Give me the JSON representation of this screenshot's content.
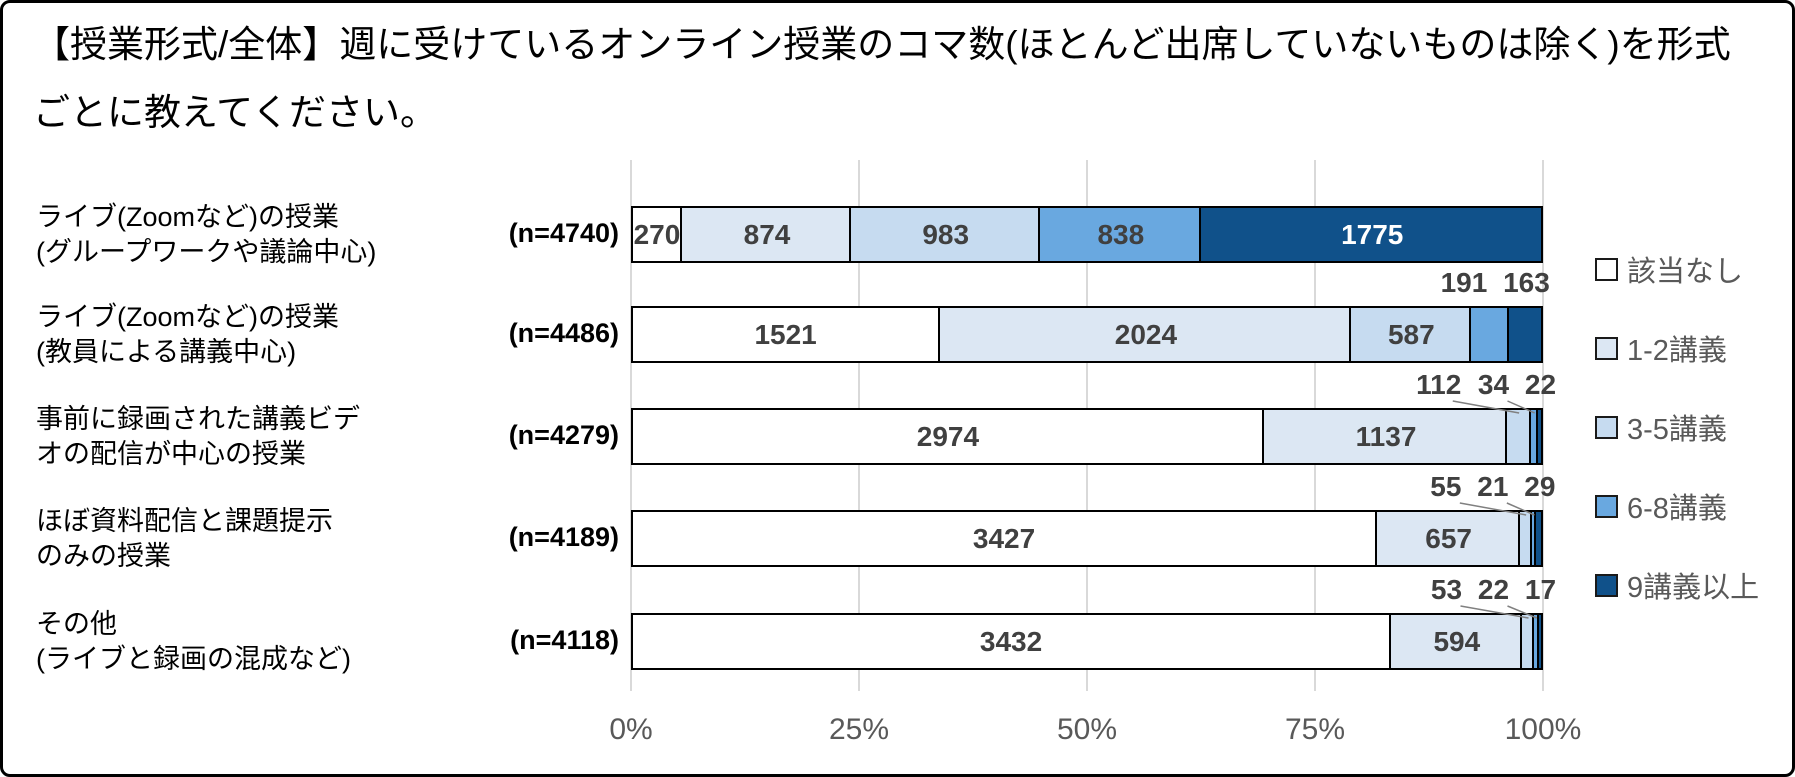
{
  "title": "【授業形式/全体】週に受けているオンライン授業のコマ数(ほとんど出席していないものは除く)を形式ごとに教えてください。",
  "chart_data": {
    "type": "bar",
    "subtype": "stacked-horizontal-100pct",
    "xlabel": "",
    "ylabel": "",
    "x_axis": {
      "ticks": [
        "0%",
        "25%",
        "50%",
        "75%",
        "100%"
      ],
      "range_pct": [
        0,
        100
      ],
      "grid": true
    },
    "legend": {
      "position": "right",
      "entries": [
        {
          "label": "該当なし",
          "color": "#FFFFFF"
        },
        {
          "label": "1-2講義",
          "color": "#DCE7F3"
        },
        {
          "label": "3-5講義",
          "color": "#C6DBF0"
        },
        {
          "label": "6-8講義",
          "color": "#69A8E0"
        },
        {
          "label": "9講義以上",
          "color": "#10518A"
        }
      ]
    },
    "rows": [
      {
        "label_lines": [
          "ライブ(Zoomなど)の授業",
          "(グループワークや議論中心)"
        ],
        "n_label": "(n=4740)",
        "n": 4740,
        "values": [
          270,
          874,
          983,
          838,
          1775
        ]
      },
      {
        "label_lines": [
          "ライブ(Zoomなど)の授業",
          "(教員による講義中心)"
        ],
        "n_label": "(n=4486)",
        "n": 4486,
        "values": [
          1521,
          2024,
          587,
          191,
          163
        ]
      },
      {
        "label_lines": [
          "事前に録画された講義ビデ",
          "オの配信が中心の授業"
        ],
        "n_label": "(n=4279)",
        "n": 4279,
        "values": [
          2974,
          1137,
          112,
          34,
          22
        ]
      },
      {
        "label_lines": [
          "ほぼ資料配信と課題提示",
          "のみの授業"
        ],
        "n_label": "(n=4189)",
        "n": 4189,
        "values": [
          3427,
          657,
          55,
          21,
          29
        ]
      },
      {
        "label_lines": [
          "その他",
          "(ライブと録画の混成など)"
        ],
        "n_label": "(n=4118)",
        "n": 4118,
        "values": [
          3432,
          594,
          53,
          22,
          17
        ]
      }
    ],
    "value_label_colors": {
      "on_light": "#404040",
      "on_dark": "#FFFFFF"
    },
    "gridline_color": "#D9D9D9"
  }
}
